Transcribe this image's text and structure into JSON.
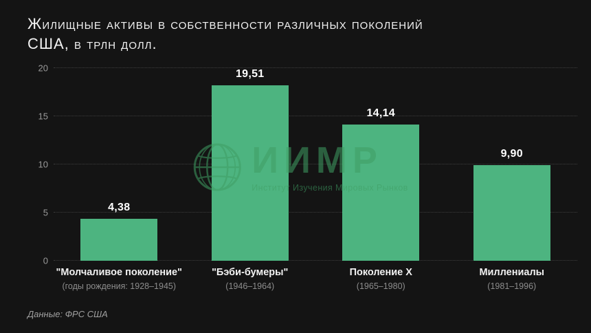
{
  "title": "Жилищные активы в собственности различных поколений США, в трлн долл.",
  "source": "Данные: ФРС США",
  "watermark": {
    "name": "ИИМР",
    "subtitle": "Институт Изучения Мировых Рынков",
    "icon": "globe-icon"
  },
  "colors": {
    "background": "#141414",
    "bar": "#4db480",
    "watermark_green": "#3f9e63",
    "gridline": "#3e3e3e",
    "text_primary": "#f2f2f2",
    "text_secondary": "#8d8d8d"
  },
  "chart_data": {
    "type": "bar",
    "title": "Жилищные активы в собственности различных поколений США, в трлн долл.",
    "categories": [
      "\"Молчаливое поколение\"",
      "\"Бэби-бумеры\"",
      "Поколение X",
      "Миллениалы"
    ],
    "sublabels": [
      "(годы рождения: 1928–1945)",
      "(1946–1964)",
      "(1965–1980)",
      "(1981–1996)"
    ],
    "values": [
      4.38,
      19.51,
      14.14,
      9.9
    ],
    "value_labels": [
      "4,38",
      "19,51",
      "14,14",
      "9,90"
    ],
    "xlabel": "",
    "ylabel": "",
    "ylim": [
      0,
      20
    ],
    "yticks": [
      0,
      5,
      10,
      15,
      20
    ],
    "grid": "dotted horizontal",
    "legend": "none",
    "source_note": "Данные: ФРС США"
  }
}
